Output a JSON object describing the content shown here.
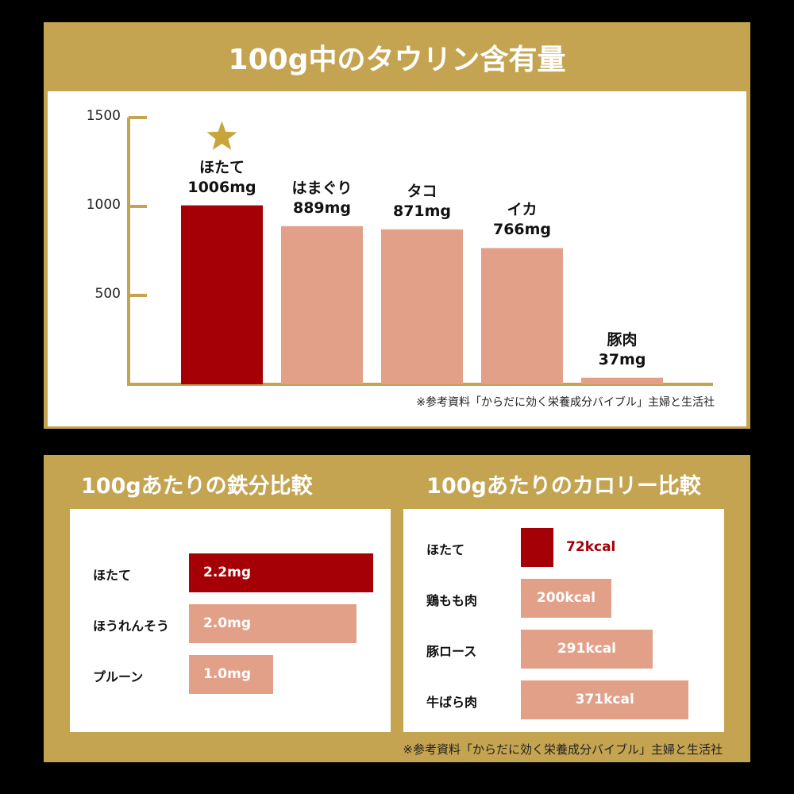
{
  "colors": {
    "gold": "#c4a351",
    "highlight": "#a50005",
    "normal": "#e3a088",
    "background": "#000000"
  },
  "source_note": "※参考資料「からだに効く栄養成分バイブル」主婦と生活社",
  "chart_data": [
    {
      "type": "bar",
      "title": "100g中のタウリン含有量",
      "unit": "mg",
      "categories": [
        "ほたて",
        "はまぐり",
        "タコ",
        "イカ",
        "豚肉"
      ],
      "values": [
        1006,
        889,
        871,
        766,
        37
      ],
      "value_labels": [
        "1006mg",
        "889mg",
        "871mg",
        "766mg",
        "37mg"
      ],
      "highlight": "ほたて",
      "highlight_icon": "star-icon",
      "yticks": [
        "1500",
        "1000",
        "500"
      ],
      "ylim": [
        0,
        1500
      ],
      "orientation": "vertical"
    },
    {
      "type": "bar",
      "title": "100gあたりの鉄分比較",
      "unit": "mg",
      "orientation": "horizontal",
      "categories": [
        "ほたて",
        "ほうれんそう",
        "プルーン"
      ],
      "values": [
        2.2,
        2.0,
        1.0
      ],
      "value_labels": [
        "2.2mg",
        "2.0mg",
        "1.0mg"
      ],
      "highlight": "ほたて"
    },
    {
      "type": "bar",
      "title": "100gあたりのカロリー比較",
      "unit": "kcal",
      "orientation": "horizontal",
      "categories": [
        "ほたて",
        "鶏もも肉",
        "豚ロース",
        "牛ばら肉"
      ],
      "values": [
        72,
        200,
        291,
        371
      ],
      "value_labels": [
        "72kcal",
        "200kcal",
        "291kcal",
        "371kcal"
      ],
      "highlight": "ほたて"
    }
  ]
}
